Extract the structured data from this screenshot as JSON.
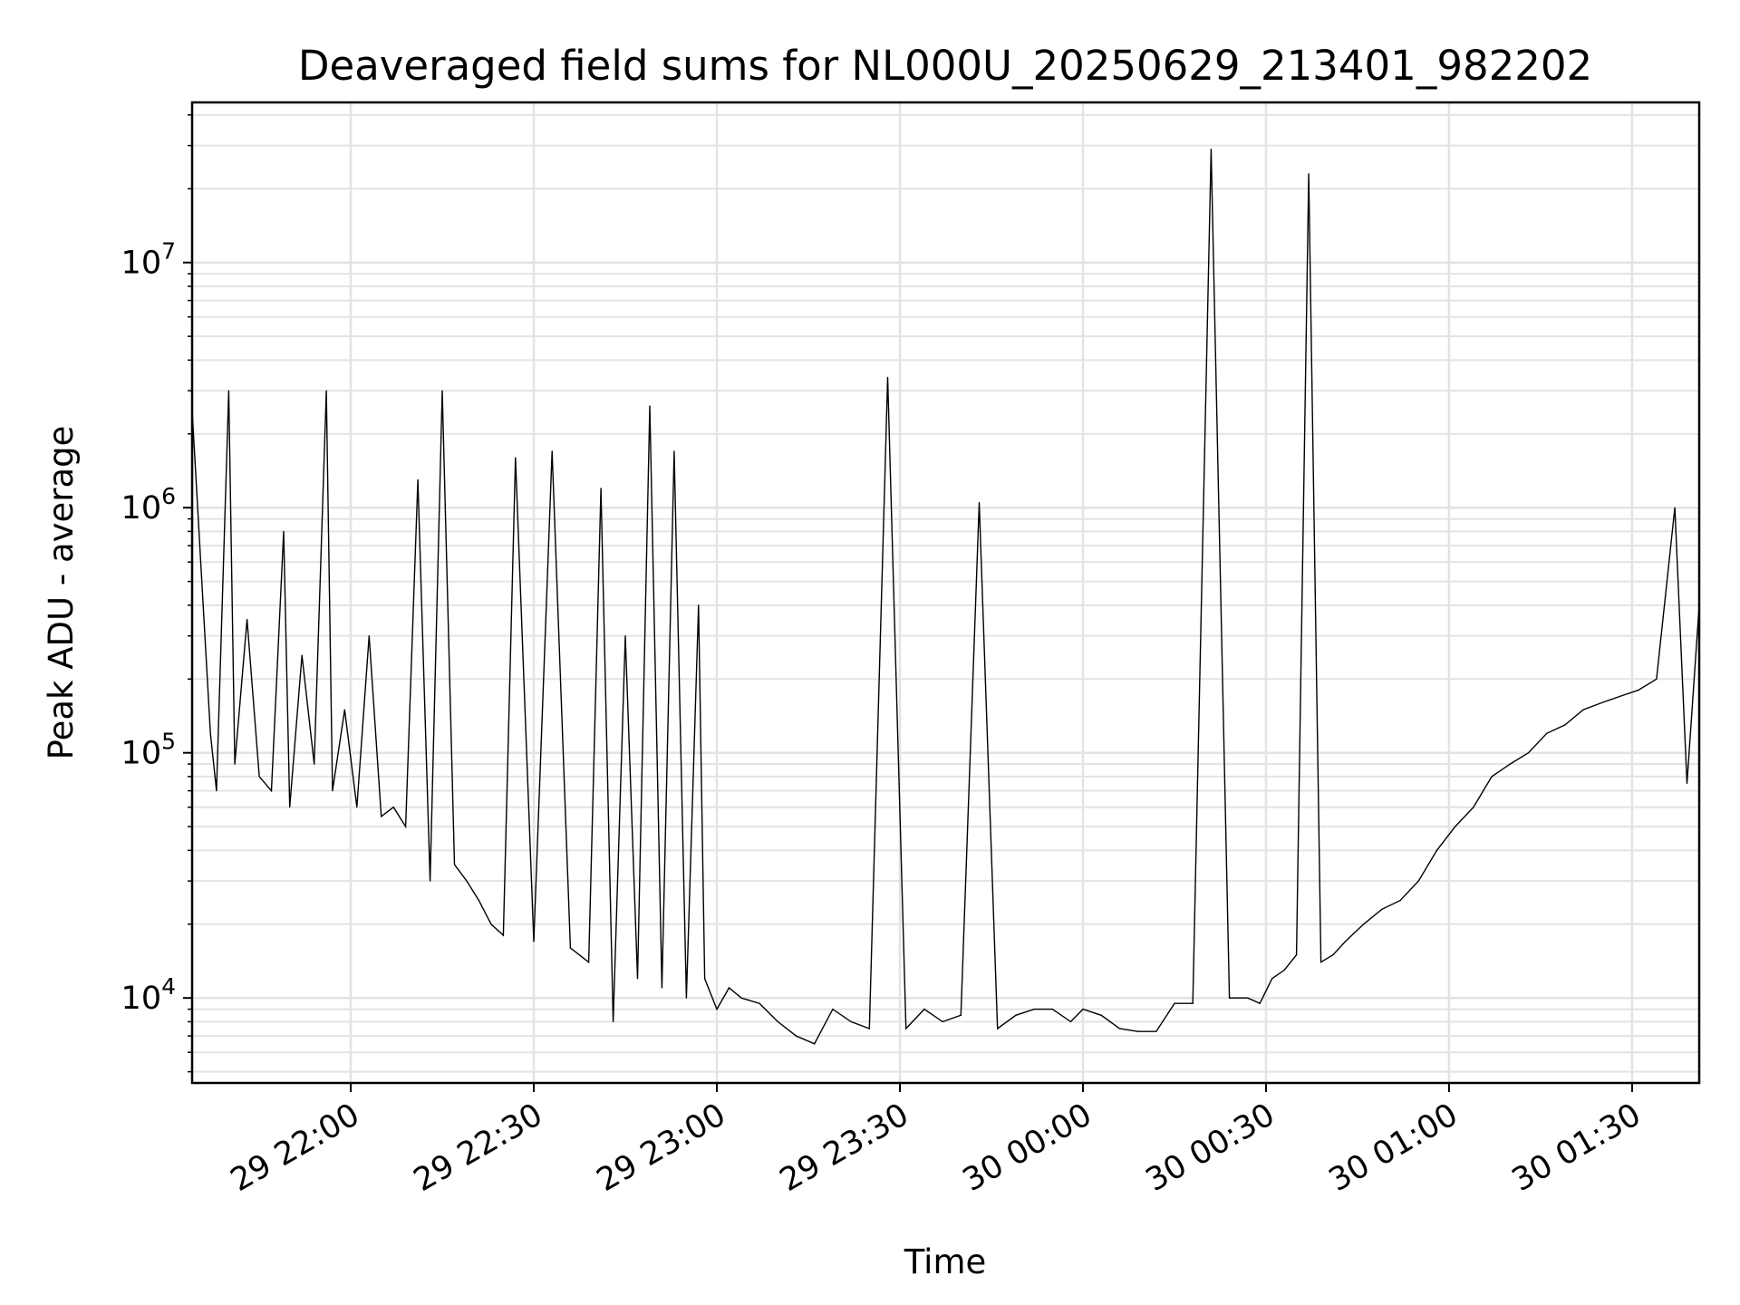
{
  "chart_data": {
    "type": "line",
    "title": "Deaveraged field sums for NL000U_20250629_213401_982202",
    "xlabel": "Time",
    "ylabel": "Peak ADU - average",
    "xscale": "time",
    "yscale": "log",
    "xlim": [
      "2025-06-29 21:34",
      "2025-06-30 01:41"
    ],
    "ylim": [
      4500,
      45000000
    ],
    "x_ticks": [
      "29 22:00",
      "29 22:30",
      "29 23:00",
      "29 23:30",
      "30 00:00",
      "30 00:30",
      "30 01:00",
      "30 01:30"
    ],
    "y_ticks": [
      {
        "base": "10",
        "exp": "4",
        "value": 10000
      },
      {
        "base": "10",
        "exp": "5",
        "value": 100000
      },
      {
        "base": "10",
        "exp": "6",
        "value": 1000000
      },
      {
        "base": "10",
        "exp": "7",
        "value": 10000000
      }
    ],
    "grid": true,
    "line_color": "#000000",
    "series": [
      {
        "x": [
          "2025-06-29 21:34",
          "2025-06-29 21:37",
          "2025-06-29 21:38",
          "2025-06-29 21:40",
          "2025-06-29 21:41",
          "2025-06-29 21:43",
          "2025-06-29 21:45",
          "2025-06-29 21:47",
          "2025-06-29 21:49",
          "2025-06-29 21:50",
          "2025-06-29 21:52",
          "2025-06-29 21:54",
          "2025-06-29 21:56",
          "2025-06-29 21:57",
          "2025-06-29 21:59",
          "2025-06-29 22:01",
          "2025-06-29 22:03",
          "2025-06-29 22:05",
          "2025-06-29 22:07",
          "2025-06-29 22:09",
          "2025-06-29 22:11",
          "2025-06-29 22:13",
          "2025-06-29 22:15",
          "2025-06-29 22:17",
          "2025-06-29 22:19",
          "2025-06-29 22:21",
          "2025-06-29 22:23",
          "2025-06-29 22:25",
          "2025-06-29 22:27",
          "2025-06-29 22:30",
          "2025-06-29 22:33",
          "2025-06-29 22:36",
          "2025-06-29 22:39",
          "2025-06-29 22:41",
          "2025-06-29 22:43",
          "2025-06-29 22:45",
          "2025-06-29 22:47",
          "2025-06-29 22:49",
          "2025-06-29 22:51",
          "2025-06-29 22:53",
          "2025-06-29 22:55",
          "2025-06-29 22:57",
          "2025-06-29 22:58",
          "2025-06-29 23:00",
          "2025-06-29 23:02",
          "2025-06-29 23:04",
          "2025-06-29 23:07",
          "2025-06-29 23:10",
          "2025-06-29 23:13",
          "2025-06-29 23:16",
          "2025-06-29 23:19",
          "2025-06-29 23:22",
          "2025-06-29 23:25",
          "2025-06-29 23:28",
          "2025-06-29 23:31",
          "2025-06-29 23:34",
          "2025-06-29 23:37",
          "2025-06-29 23:40",
          "2025-06-29 23:43",
          "2025-06-29 23:46",
          "2025-06-29 23:49",
          "2025-06-29 23:52",
          "2025-06-29 23:55",
          "2025-06-29 23:58",
          "2025-06-30 00:00",
          "2025-06-30 00:03",
          "2025-06-30 00:06",
          "2025-06-30 00:09",
          "2025-06-30 00:12",
          "2025-06-30 00:15",
          "2025-06-30 00:18",
          "2025-06-30 00:21",
          "2025-06-30 00:24",
          "2025-06-30 00:27",
          "2025-06-30 00:29",
          "2025-06-30 00:31",
          "2025-06-30 00:33",
          "2025-06-30 00:35",
          "2025-06-30 00:37",
          "2025-06-30 00:39",
          "2025-06-30 00:41",
          "2025-06-30 00:43",
          "2025-06-30 00:46",
          "2025-06-30 00:49",
          "2025-06-30 00:52",
          "2025-06-30 00:55",
          "2025-06-30 00:58",
          "2025-06-30 01:01",
          "2025-06-30 01:04",
          "2025-06-30 01:07",
          "2025-06-30 01:10",
          "2025-06-30 01:13",
          "2025-06-30 01:16",
          "2025-06-30 01:19",
          "2025-06-30 01:22",
          "2025-06-30 01:25",
          "2025-06-30 01:28",
          "2025-06-30 01:31",
          "2025-06-30 01:34",
          "2025-06-30 01:37",
          "2025-06-30 01:39",
          "2025-06-30 01:41"
        ],
        "y": [
          2500000,
          120000,
          70000,
          3000000,
          90000,
          350000,
          80000,
          70000,
          800000,
          60000,
          250000,
          90000,
          3000000,
          70000,
          150000,
          60000,
          300000,
          55000,
          60000,
          50000,
          1300000,
          30000,
          3000000,
          35000,
          30000,
          25000,
          20000,
          18000,
          1600000,
          17000,
          1700000,
          16000,
          14000,
          1200000,
          8000,
          300000,
          12000,
          2600000,
          11000,
          1700000,
          10000,
          400000,
          12000,
          9000,
          11000,
          10000,
          9500,
          8000,
          7000,
          6500,
          9000,
          8000,
          7500,
          3400000,
          7500,
          9000,
          8000,
          8500,
          1050000,
          7500,
          8500,
          9000,
          9000,
          8000,
          9000,
          8500,
          7500,
          7300,
          7300,
          9500,
          9500,
          29000000,
          10000,
          10000,
          9500,
          12000,
          13000,
          15000,
          23000000,
          14000,
          15000,
          17000,
          20000,
          23000,
          25000,
          30000,
          40000,
          50000,
          60000,
          80000,
          90000,
          100000,
          120000,
          130000,
          150000,
          160000,
          170000,
          180000,
          200000,
          1000000,
          75000,
          400000
        ]
      }
    ]
  }
}
